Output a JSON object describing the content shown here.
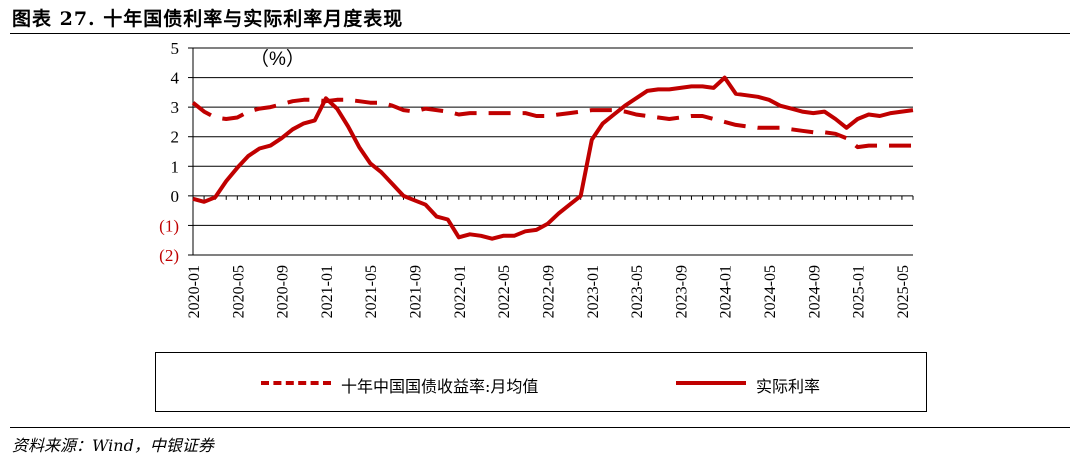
{
  "header": {
    "title": "图表 27. 十年国债利率与实际利率月度表现"
  },
  "footer": {
    "source": "资料来源：Wind，中银证券"
  },
  "colors": {
    "series": "#c00000",
    "negative_tick": "#c00000",
    "axis": "#000000"
  },
  "chart_data": {
    "type": "line",
    "unit_label": "（%）",
    "ylim": [
      -2,
      5
    ],
    "y_ticks": [
      {
        "value": 5,
        "label": "5"
      },
      {
        "value": 4,
        "label": "4"
      },
      {
        "value": 3,
        "label": "3"
      },
      {
        "value": 2,
        "label": "2"
      },
      {
        "value": 1,
        "label": "1"
      },
      {
        "value": 0,
        "label": "0"
      },
      {
        "value": -1,
        "label": "(1)"
      },
      {
        "value": -2,
        "label": "(2)"
      }
    ],
    "x_ticks": [
      "2020-01",
      "2020-05",
      "2020-09",
      "2021-01",
      "2021-05",
      "2021-09",
      "2022-01",
      "2022-05",
      "2022-09",
      "2023-01",
      "2023-05",
      "2023-09",
      "2024-01",
      "2024-05",
      "2024-09",
      "2025-01",
      "2025-05"
    ],
    "x": [
      "2020-01",
      "2020-02",
      "2020-03",
      "2020-04",
      "2020-05",
      "2020-06",
      "2020-07",
      "2020-08",
      "2020-09",
      "2020-10",
      "2020-11",
      "2020-12",
      "2021-01",
      "2021-02",
      "2021-03",
      "2021-04",
      "2021-05",
      "2021-06",
      "2021-07",
      "2021-08",
      "2021-09",
      "2021-10",
      "2021-11",
      "2021-12",
      "2022-01",
      "2022-02",
      "2022-03",
      "2022-04",
      "2022-05",
      "2022-06",
      "2022-07",
      "2022-08",
      "2022-09",
      "2022-10",
      "2022-11",
      "2022-12",
      "2023-01",
      "2023-02",
      "2023-03",
      "2023-04",
      "2023-05",
      "2023-06",
      "2023-07",
      "2023-08",
      "2023-09",
      "2023-10",
      "2023-11",
      "2023-12",
      "2024-01",
      "2024-02",
      "2024-03",
      "2024-04",
      "2024-05",
      "2024-06",
      "2024-07",
      "2024-08",
      "2024-09",
      "2024-10",
      "2024-11",
      "2024-12",
      "2025-01",
      "2025-02",
      "2025-03",
      "2025-04",
      "2025-05",
      "2025-06"
    ],
    "series": [
      {
        "name": "十年中国国债收益率:月均值",
        "style": "dashed",
        "values": [
          3.15,
          2.85,
          2.65,
          2.6,
          2.65,
          2.85,
          2.95,
          3.0,
          3.1,
          3.2,
          3.25,
          3.25,
          3.2,
          3.25,
          3.25,
          3.2,
          3.15,
          3.15,
          3.05,
          2.9,
          2.85,
          2.95,
          2.9,
          2.85,
          2.75,
          2.8,
          2.8,
          2.8,
          2.8,
          2.8,
          2.8,
          2.7,
          2.7,
          2.75,
          2.8,
          2.85,
          2.9,
          2.9,
          2.9,
          2.85,
          2.75,
          2.7,
          2.65,
          2.6,
          2.65,
          2.7,
          2.7,
          2.6,
          2.5,
          2.4,
          2.35,
          2.3,
          2.3,
          2.3,
          2.25,
          2.2,
          2.15,
          2.15,
          2.1,
          1.95,
          1.65,
          1.7,
          1.7,
          1.7,
          1.7,
          1.7
        ]
      },
      {
        "name": "实际利率",
        "style": "solid",
        "values": [
          -0.1,
          -0.2,
          -0.05,
          0.5,
          0.95,
          1.35,
          1.6,
          1.7,
          1.95,
          2.25,
          2.45,
          2.55,
          3.3,
          2.95,
          2.35,
          1.65,
          1.1,
          0.8,
          0.4,
          0.0,
          -0.15,
          -0.3,
          -0.7,
          -0.8,
          -1.4,
          -1.3,
          -1.35,
          -1.45,
          -1.35,
          -1.35,
          -1.2,
          -1.15,
          -0.95,
          -0.6,
          -0.3,
          0.0,
          1.9,
          2.45,
          2.75,
          3.05,
          3.3,
          3.55,
          3.6,
          3.6,
          3.65,
          3.7,
          3.7,
          3.65,
          4.0,
          3.45,
          3.4,
          3.35,
          3.25,
          3.05,
          2.95,
          2.85,
          2.8,
          2.85,
          2.6,
          2.3,
          2.6,
          2.75,
          2.7,
          2.8,
          2.85,
          2.9
        ]
      }
    ],
    "legend": {
      "position": "bottom"
    }
  }
}
